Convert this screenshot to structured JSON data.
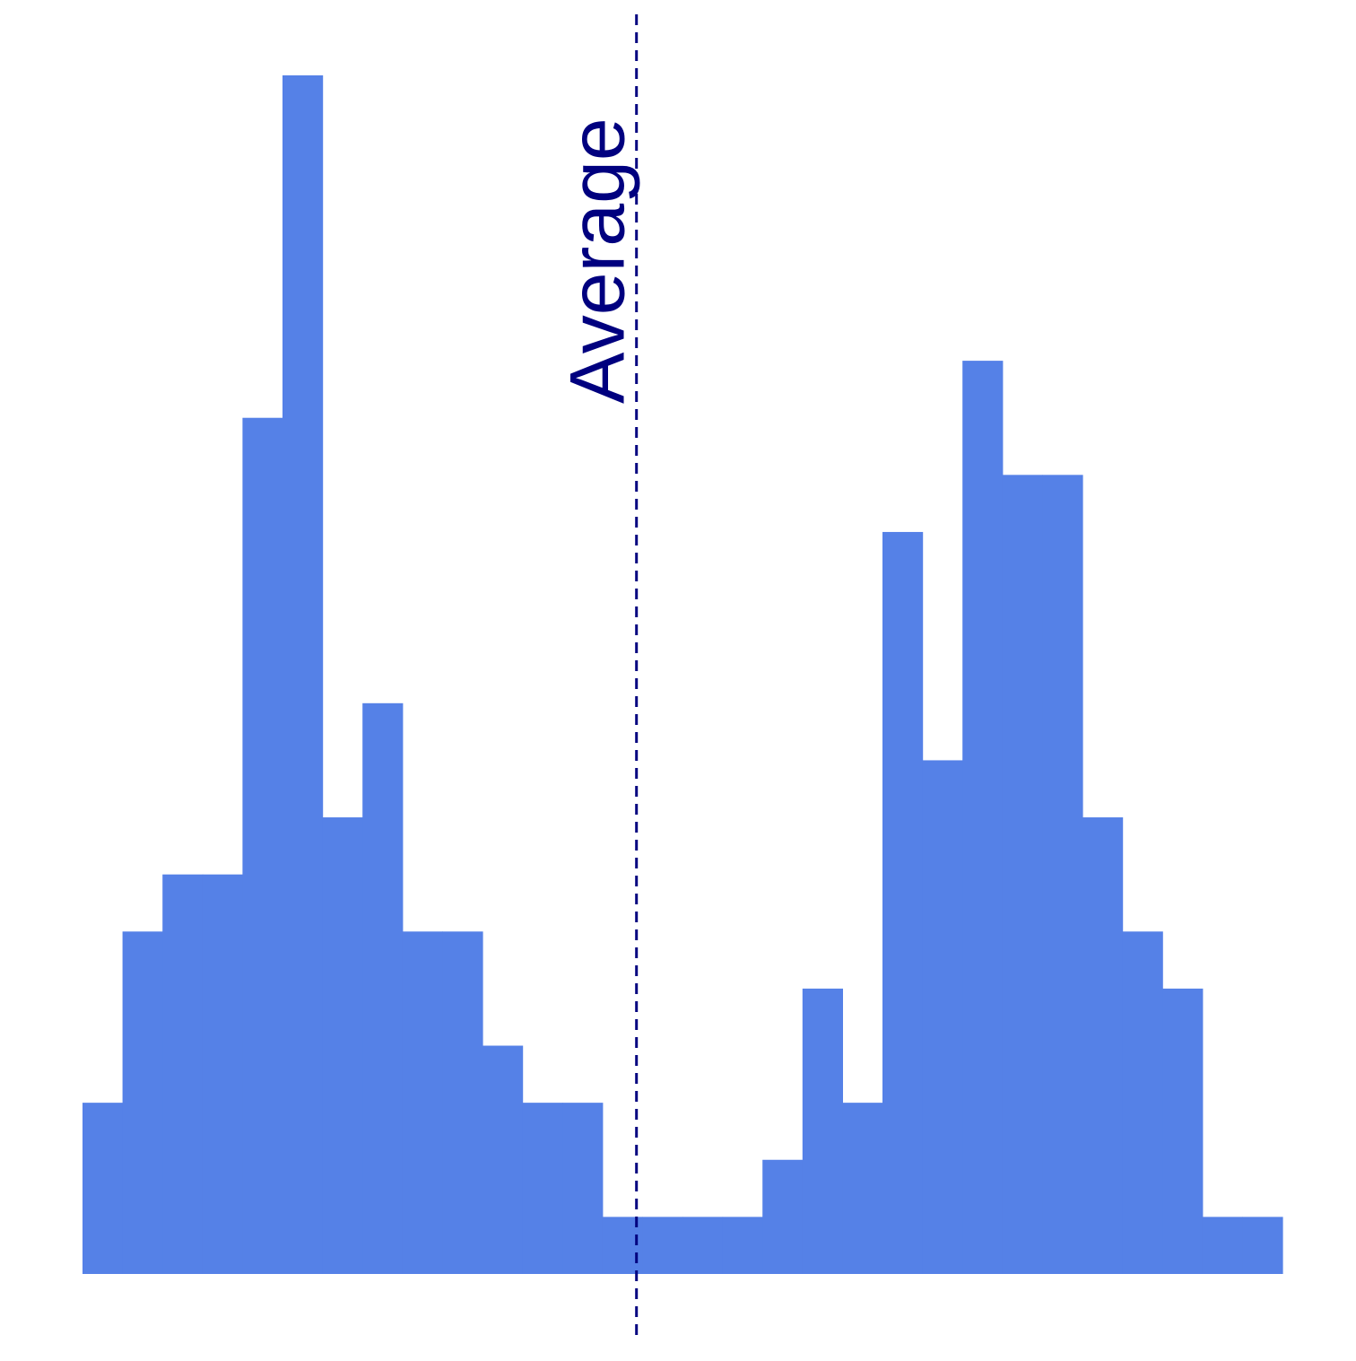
{
  "chart_data": {
    "type": "bar",
    "title": "",
    "xlabel": "",
    "ylabel": "",
    "grid": false,
    "ylim": [
      0,
      21
    ],
    "bin_count": 30,
    "values": [
      3,
      6,
      7,
      7,
      15,
      21,
      8,
      10,
      6,
      6,
      4,
      3,
      3,
      1,
      1,
      1,
      1,
      2,
      5,
      3,
      13,
      9,
      16,
      14,
      14,
      8,
      6,
      5,
      1,
      1
    ],
    "bar_color": "#5581e7",
    "reference_line": {
      "label": "Average",
      "position_bin": 13.85,
      "color": "#00007f",
      "style": "dashed"
    }
  }
}
